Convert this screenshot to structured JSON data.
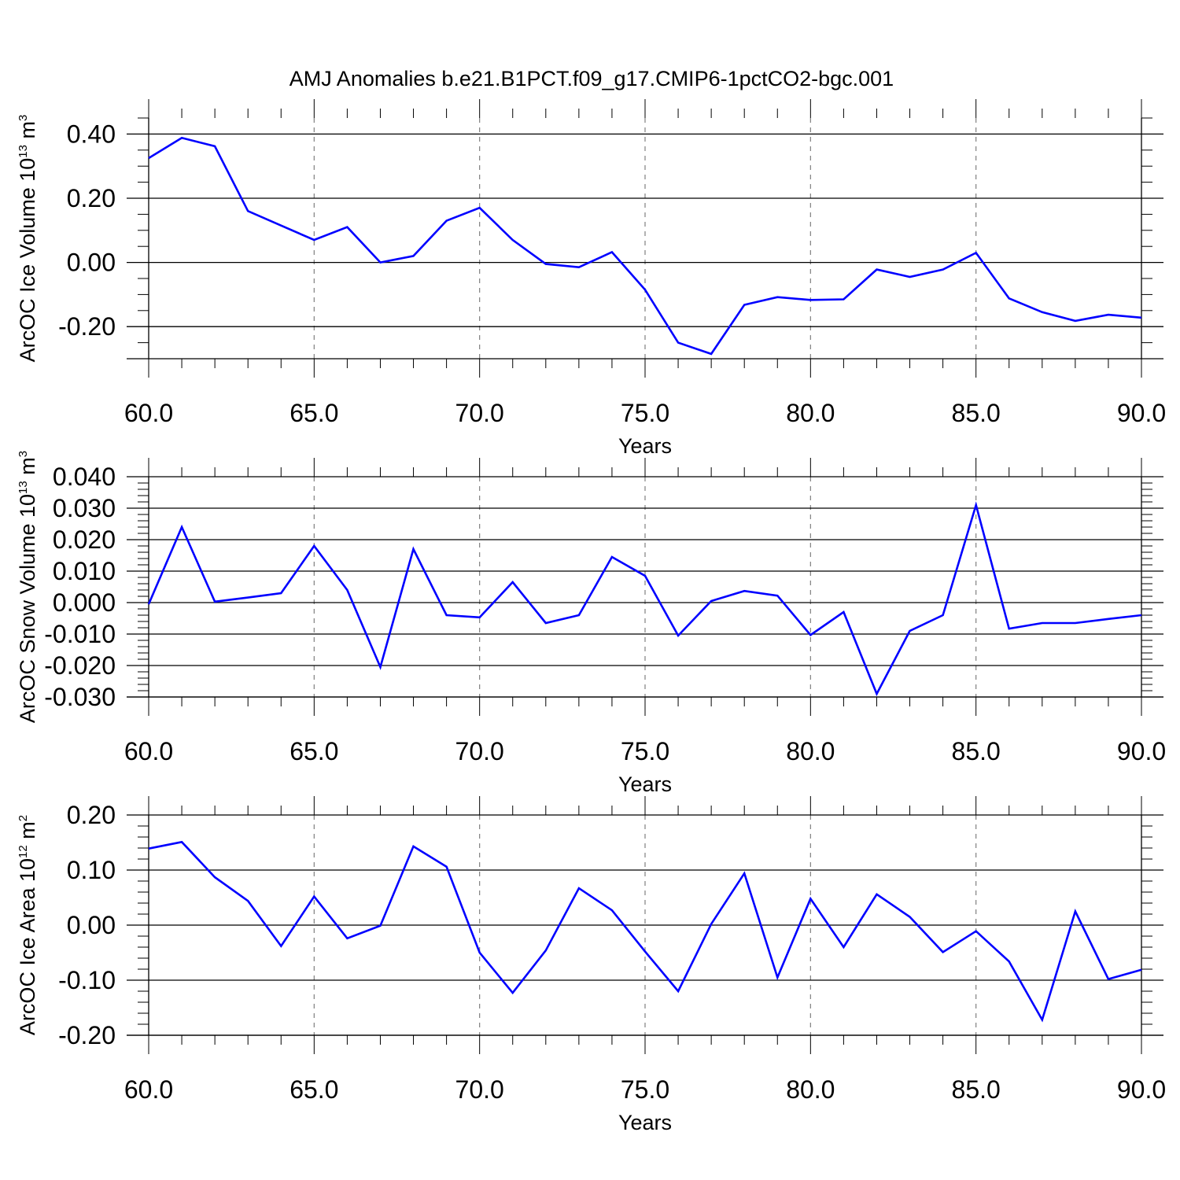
{
  "title": "AMJ Anomalies b.e21.B1PCT.f09_g17.CMIP6-1pctCO2-bgc.001",
  "colors": {
    "line": "#0000ff",
    "axis": "#000000",
    "grid": "#808080"
  },
  "chart_data": [
    {
      "type": "line",
      "xlabel": "Years",
      "ylabel": {
        "prefix": "ArcOC Ice Volume 10",
        "exponent": "13",
        "unit": " m",
        "unit_exponent": "3"
      },
      "xlim": [
        60,
        90
      ],
      "ylim": [
        -0.3,
        0.45
      ],
      "xticks": [
        60,
        65,
        70,
        75,
        80,
        85,
        90
      ],
      "xtick_labels": [
        "60.0",
        "65.0",
        "70.0",
        "75.0",
        "80.0",
        "85.0",
        "90.0"
      ],
      "yticks": [
        -0.2,
        0.0,
        0.2,
        0.4
      ],
      "ytick_labels": [
        "-0.20",
        "0.00",
        "0.20",
        "0.40"
      ],
      "y_minor_step": 0.05,
      "vgrid": [
        65,
        70,
        75,
        80,
        85
      ],
      "x": [
        60,
        61,
        62,
        63,
        64,
        65,
        66,
        67,
        68,
        69,
        70,
        71,
        72,
        73,
        74,
        75,
        76,
        77,
        78,
        79,
        80,
        81,
        82,
        83,
        84,
        85,
        86,
        87,
        88,
        89,
        90
      ],
      "values": [
        0.325,
        0.388,
        0.362,
        0.16,
        0.115,
        0.07,
        0.11,
        0.0,
        0.02,
        0.13,
        0.17,
        0.07,
        -0.005,
        -0.015,
        0.032,
        -0.085,
        -0.25,
        -0.285,
        -0.132,
        -0.108,
        -0.117,
        -0.115,
        -0.022,
        -0.045,
        -0.022,
        0.03,
        -0.112,
        -0.155,
        -0.182,
        -0.163,
        -0.172
      ]
    },
    {
      "type": "line",
      "xlabel": "Years",
      "ylabel": {
        "prefix": "ArcOC Snow Volume 10",
        "exponent": "13",
        "unit": " m",
        "unit_exponent": "3"
      },
      "xlim": [
        60,
        90
      ],
      "ylim": [
        -0.03,
        0.04
      ],
      "xticks": [
        60,
        65,
        70,
        75,
        80,
        85,
        90
      ],
      "xtick_labels": [
        "60.0",
        "65.0",
        "70.0",
        "75.0",
        "80.0",
        "85.0",
        "90.0"
      ],
      "yticks": [
        -0.03,
        -0.02,
        -0.01,
        0.0,
        0.01,
        0.02,
        0.03,
        0.04
      ],
      "ytick_labels": [
        "-0.030",
        "-0.020",
        "-0.010",
        "0.000",
        "0.010",
        "0.020",
        "0.030",
        "0.040"
      ],
      "y_minor_step": 0.002,
      "vgrid": [
        65,
        70,
        75,
        80,
        85
      ],
      "x": [
        60,
        61,
        62,
        63,
        64,
        65,
        66,
        67,
        68,
        69,
        70,
        71,
        72,
        73,
        74,
        75,
        76,
        77,
        78,
        79,
        80,
        81,
        82,
        83,
        84,
        85,
        86,
        87,
        88,
        89,
        90
      ],
      "values": [
        -0.0005,
        0.024,
        0.0003,
        0.0016,
        0.003,
        0.018,
        0.004,
        -0.0205,
        0.017,
        -0.004,
        -0.0047,
        0.0065,
        -0.0065,
        -0.004,
        0.0145,
        0.0085,
        -0.0105,
        0.0005,
        0.0037,
        0.0022,
        -0.0103,
        -0.003,
        -0.029,
        -0.009,
        -0.004,
        0.031,
        -0.0083,
        -0.0065,
        -0.0065,
        -0.0052,
        -0.004
      ]
    },
    {
      "type": "line",
      "xlabel": "Years",
      "ylabel": {
        "prefix": "ArcOC Ice Area 10",
        "exponent": "12",
        "unit": " m",
        "unit_exponent": "2"
      },
      "xlim": [
        60,
        90
      ],
      "ylim": [
        -0.2,
        0.2
      ],
      "xticks": [
        60,
        65,
        70,
        75,
        80,
        85,
        90
      ],
      "xtick_labels": [
        "60.0",
        "65.0",
        "70.0",
        "75.0",
        "80.0",
        "85.0",
        "90.0"
      ],
      "yticks": [
        -0.2,
        -0.1,
        0.0,
        0.1,
        0.2
      ],
      "ytick_labels": [
        "-0.20",
        "-0.10",
        "0.00",
        "0.10",
        "0.20"
      ],
      "y_minor_step": 0.02,
      "vgrid": [
        65,
        70,
        75,
        80,
        85
      ],
      "x": [
        60,
        61,
        62,
        63,
        64,
        65,
        66,
        67,
        68,
        69,
        70,
        71,
        72,
        73,
        74,
        75,
        76,
        77,
        78,
        79,
        80,
        81,
        82,
        83,
        84,
        85,
        86,
        87,
        88,
        89,
        90
      ],
      "values": [
        0.139,
        0.151,
        0.087,
        0.044,
        -0.038,
        0.052,
        -0.024,
        -0.001,
        0.143,
        0.106,
        -0.05,
        -0.123,
        -0.046,
        0.067,
        0.027,
        -0.048,
        -0.12,
        0.002,
        0.094,
        -0.095,
        0.048,
        -0.04,
        0.056,
        0.015,
        -0.049,
        -0.011,
        -0.066,
        -0.172,
        0.025,
        -0.098,
        -0.081
      ]
    }
  ]
}
